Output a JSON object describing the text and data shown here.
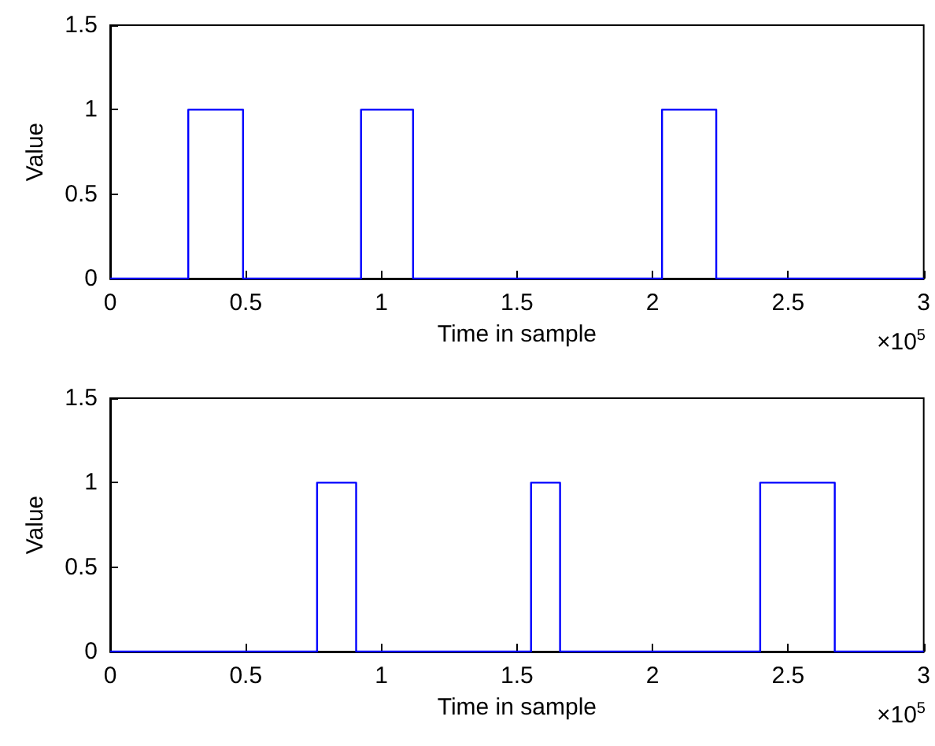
{
  "chart_data": [
    {
      "type": "step",
      "xlabel": "Time in sample",
      "ylabel": "Value",
      "annotations": [
        "×10$^{5}$"
      ],
      "x": [
        0,
        0.288,
        0.49,
        0.925,
        1.117,
        2.035,
        2.235,
        3
      ],
      "series": [
        {
          "color": "#0000ff",
          "values": [
            0,
            1,
            0,
            1,
            0,
            1,
            0,
            0
          ]
        }
      ],
      "xlim": [
        0,
        3
      ],
      "xticks": [
        0,
        0.5,
        1,
        1.5,
        2,
        2.5,
        3
      ],
      "ylim": [
        0,
        1.5
      ],
      "yticks": [
        0,
        0.5,
        1,
        1.5
      ],
      "grid": false
    },
    {
      "type": "step",
      "xlabel": "Time in sample",
      "ylabel": "Value",
      "annotations": [
        "×10$^{5}$"
      ],
      "x": [
        0,
        0.763,
        0.907,
        1.552,
        1.659,
        2.397,
        2.672,
        3
      ],
      "series": [
        {
          "color": "#0000ff",
          "values": [
            0,
            1,
            0,
            1,
            0,
            1,
            0,
            0
          ]
        }
      ],
      "xlim": [
        0,
        3
      ],
      "xticks": [
        0,
        0.5,
        1,
        1.5,
        2,
        2.5,
        3
      ],
      "ylim": [
        0,
        1.5
      ],
      "yticks": [
        0,
        0.5,
        1,
        1.5
      ],
      "grid": false
    }
  ]
}
